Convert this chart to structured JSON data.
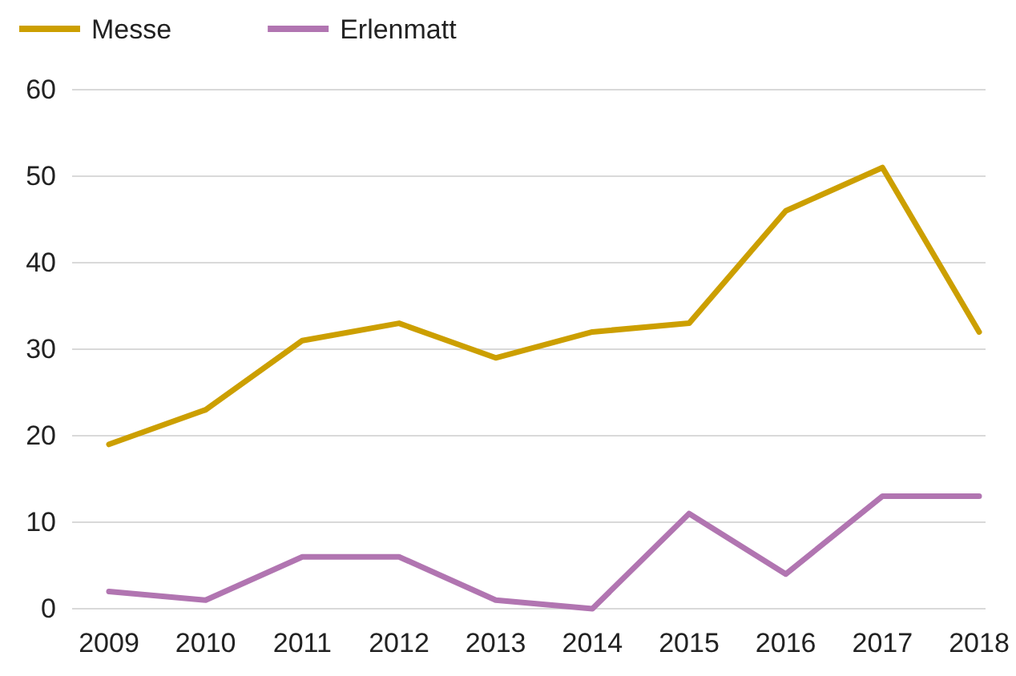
{
  "chart_data": {
    "type": "line",
    "categories": [
      "2009",
      "2010",
      "2011",
      "2012",
      "2013",
      "2014",
      "2015",
      "2016",
      "2017",
      "2018"
    ],
    "series": [
      {
        "name": "Messe",
        "color": "#cc9f00",
        "values": [
          19,
          23,
          31,
          33,
          29,
          32,
          33,
          46,
          51,
          32
        ]
      },
      {
        "name": "Erlenmatt",
        "color": "#b175b1",
        "values": [
          2,
          1,
          6,
          6,
          1,
          0,
          11,
          4,
          13,
          13
        ]
      }
    ],
    "ylim": [
      0,
      60
    ],
    "yticks": [
      0,
      10,
      20,
      30,
      40,
      50,
      60
    ],
    "grid": "y",
    "legend": "top left",
    "marker": "none",
    "line_style": "solid"
  }
}
